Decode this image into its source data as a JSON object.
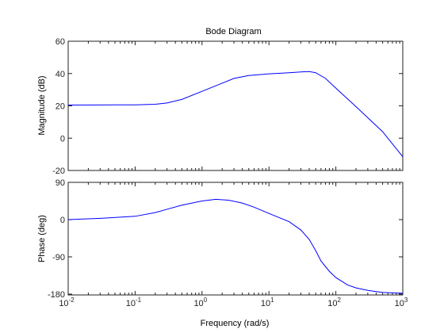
{
  "chart_data": {
    "type": "line",
    "title": "Bode Diagram",
    "xlabel": "Frequency  (rad/s)",
    "xscale": "log",
    "xlim": [
      0.01,
      1000
    ],
    "x_ticks": [
      0.01,
      0.1,
      1,
      10,
      100,
      1000
    ],
    "x_tick_labels": [
      {
        "base": "10",
        "exp": "-2"
      },
      {
        "base": "10",
        "exp": "-1"
      },
      {
        "base": "10",
        "exp": "0"
      },
      {
        "base": "10",
        "exp": "1"
      },
      {
        "base": "10",
        "exp": "2"
      },
      {
        "base": "10",
        "exp": "3"
      }
    ],
    "line_color": "#0000ff",
    "grid": false,
    "panels": [
      {
        "name": "magnitude",
        "ylabel": "Magnitude (dB)",
        "ylim": [
          -20,
          60
        ],
        "y_ticks": [
          -20,
          0,
          20,
          40,
          60
        ],
        "y_tick_labels": [
          "-20",
          "0",
          "20",
          "40",
          "60"
        ],
        "series": [
          {
            "x": [
              0.01,
              0.05,
              0.1,
              0.2,
              0.3,
              0.5,
              1,
              2,
              3,
              5,
              10,
              20,
              30,
              40,
              50,
              70,
              100,
              200,
              500,
              1000
            ],
            "y": [
              20.5,
              20.6,
              20.6,
              21,
              21.8,
              24,
              29,
              34,
              37,
              38.8,
              39.8,
              40.5,
              41,
              41.2,
              40.5,
              37,
              31,
              19.5,
              4,
              -11.5
            ]
          }
        ]
      },
      {
        "name": "phase",
        "ylabel": "Phase (deg)",
        "ylim": [
          -182,
          90
        ],
        "y_ticks": [
          -180,
          -90,
          0,
          90
        ],
        "y_tick_labels": [
          "-180",
          "-90",
          "0",
          "90"
        ],
        "series": [
          {
            "x": [
              0.01,
              0.03,
              0.1,
              0.2,
              0.3,
              0.5,
              1,
              1.6,
              2.5,
              4,
              6,
              10,
              20,
              30,
              40,
              50,
              60,
              80,
              100,
              150,
              200,
              300,
              500,
              1000
            ],
            "y": [
              0,
              3,
              8,
              17,
              25,
              35,
              45,
              49,
              47,
              40,
              30,
              15,
              -5,
              -25,
              -48,
              -75,
              -100,
              -125,
              -140,
              -158,
              -165,
              -171,
              -176,
              -178
            ]
          }
        ]
      }
    ]
  }
}
